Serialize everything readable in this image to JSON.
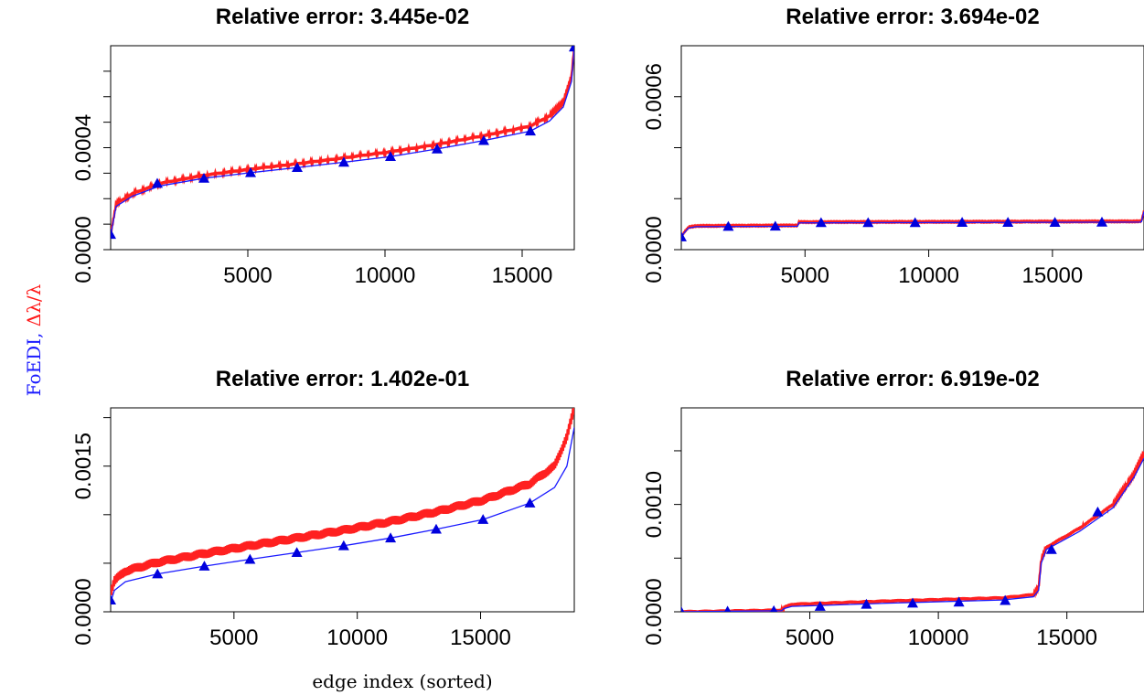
{
  "figure": {
    "ylabel_parts": [
      {
        "text": "FoEDI, ",
        "color": "#1a1aff"
      },
      {
        "text": "Δλ/λ",
        "color": "#ff1a1a"
      }
    ],
    "xlabel": "edge index (sorted)",
    "colors": {
      "foedi": "#1a1aff",
      "delta": "#ff2020",
      "triangle": "#0000dd"
    }
  },
  "chart_data": [
    {
      "type": "line",
      "title": "Relative error:  3.445e-02",
      "xlim": [
        0,
        16900
      ],
      "ylim": [
        0,
        0.0008
      ],
      "xticks": [
        5000,
        10000,
        15000
      ],
      "xticklabels": [
        "5000",
        "10000",
        "15000"
      ],
      "yticks": [
        0,
        0.0004
      ],
      "yticklabels": [
        "0.0000",
        "0.0004"
      ],
      "yminor": [
        0.0001,
        0.0002,
        0.0003,
        0.0005,
        0.0006,
        0.0007
      ],
      "noise": 6e-06,
      "series": [
        {
          "role": "foedi",
          "x": [
            0,
            200,
            800,
            1800,
            3400,
            5100,
            6800,
            8500,
            10200,
            11900,
            13600,
            15300,
            16000,
            16500,
            16800,
            16900
          ],
          "y": [
            5.5e-05,
            0.00017,
            0.00021,
            0.00025,
            0.00028,
            0.000302,
            0.000322,
            0.000343,
            0.000365,
            0.000395,
            0.000428,
            0.000465,
            0.000505,
            0.00056,
            0.00066,
            0.000795
          ]
        },
        {
          "role": "delta",
          "x": [
            0,
            200,
            800,
            1800,
            3400,
            5100,
            6800,
            8500,
            10200,
            11900,
            13600,
            15300,
            16000,
            16500,
            16800,
            16900
          ],
          "y": [
            6e-05,
            0.00018,
            0.00022,
            0.00026,
            0.000292,
            0.000316,
            0.000337,
            0.00036,
            0.000384,
            0.000413,
            0.000447,
            0.000485,
            0.000525,
            0.00058,
            0.00068,
            0.0008
          ]
        },
        {
          "role": "markers",
          "x": [
            0,
            1700,
            3400,
            5100,
            6800,
            8500,
            10200,
            11900,
            13600,
            15300,
            16900
          ],
          "y": [
            6e-05,
            0.00026,
            0.00028,
            0.000302,
            0.000322,
            0.000343,
            0.000365,
            0.000395,
            0.000428,
            0.000465,
            0.000795
          ]
        }
      ]
    },
    {
      "type": "line",
      "title": "Relative error:  3.694e-02",
      "xlim": [
        0,
        18700
      ],
      "ylim": [
        0,
        0.0008
      ],
      "xticks": [
        5000,
        10000,
        15000
      ],
      "xticklabels": [
        "5000",
        "10000",
        "15000"
      ],
      "yticks": [
        0,
        0.0006
      ],
      "yticklabels": [
        "0.0000",
        "0.0006"
      ],
      "yminor": [
        0.0002,
        0.0004
      ],
      "noise": 2e-06,
      "series": [
        {
          "role": "foedi",
          "x": [
            0,
            150,
            300,
            600,
            4700,
            4750,
            18550,
            18600,
            18700
          ],
          "y": [
            5e-05,
            7e-05,
            8.5e-05,
            9e-05,
            9.2e-05,
            0.000105,
            0.000108,
            0.00011,
            0.00015
          ]
        },
        {
          "role": "delta",
          "x": [
            0,
            150,
            300,
            600,
            4700,
            4750,
            18550,
            18600,
            18700
          ],
          "y": [
            5.2e-05,
            7.2e-05,
            8.8e-05,
            9.3e-05,
            9.5e-05,
            0.000108,
            0.000111,
            0.000113,
            0.000152
          ]
        },
        {
          "role": "markers",
          "x": [
            0,
            1900,
            3800,
            5650,
            7550,
            9450,
            11350,
            13200,
            15100,
            17000
          ],
          "y": [
            5e-05,
            9.1e-05,
            9.2e-05,
            0.000106,
            0.000106,
            0.000106,
            0.000107,
            0.000107,
            0.000107,
            0.000108
          ]
        }
      ]
    },
    {
      "type": "line",
      "title": "Relative error:  1.402e-01",
      "xlim": [
        0,
        18800
      ],
      "ylim": [
        0,
        0.0021
      ],
      "xticks": [
        5000,
        10000,
        15000
      ],
      "xticklabels": [
        "5000",
        "10000",
        "15000"
      ],
      "yticks": [
        0,
        0.0015
      ],
      "yticklabels": [
        "0.0000",
        "0.0015"
      ],
      "yminor": [
        0.0005,
        0.001,
        0.002
      ],
      "noise": 5e-05,
      "series": [
        {
          "role": "foedi",
          "x": [
            0,
            150,
            600,
            1900,
            3800,
            5650,
            7550,
            9450,
            11350,
            13200,
            15100,
            17000,
            18000,
            18500,
            18800
          ],
          "y": [
            0.0001,
            0.00022,
            0.00031,
            0.00039,
            0.00047,
            0.00054,
            0.00061,
            0.00068,
            0.00076,
            0.00085,
            0.00095,
            0.00112,
            0.00128,
            0.0015,
            0.0019
          ]
        },
        {
          "role": "delta",
          "x": [
            0,
            150,
            600,
            1900,
            3800,
            5650,
            7550,
            9450,
            11350,
            13200,
            15100,
            17000,
            18000,
            18500,
            18800
          ],
          "y": [
            0.0002,
            0.00032,
            0.00042,
            0.00051,
            0.0006,
            0.00068,
            0.00076,
            0.00084,
            0.00093,
            0.00103,
            0.00115,
            0.00132,
            0.0015,
            0.0018,
            0.0021
          ]
        },
        {
          "role": "markers",
          "x": [
            0,
            1900,
            3800,
            5650,
            7550,
            9450,
            11350,
            13200,
            15100,
            17000
          ],
          "y": [
            0.00012,
            0.00039,
            0.00047,
            0.00054,
            0.00061,
            0.00068,
            0.00076,
            0.00085,
            0.00095,
            0.00112
          ]
        }
      ]
    },
    {
      "type": "line",
      "title": "Relative error:  6.919e-02",
      "xlim": [
        0,
        18000
      ],
      "ylim": [
        0,
        0.0019
      ],
      "xticks": [
        5000,
        10000,
        15000
      ],
      "xticklabels": [
        "5000",
        "10000",
        "15000"
      ],
      "yticks": [
        0,
        0.001
      ],
      "yticklabels": [
        "0.0000",
        "0.0010"
      ],
      "yminor": [
        0.0005,
        0.0015
      ],
      "noise": 1.5e-05,
      "series": [
        {
          "role": "foedi",
          "x": [
            0,
            3900,
            4000,
            4300,
            8000,
            12500,
            13700,
            13900,
            14000,
            14200,
            15500,
            16800,
            17600,
            18000
          ],
          "y": [
            0.0,
            1e-05,
            3e-05,
            5e-05,
            8e-05,
            0.00011,
            0.00014,
            0.0002,
            0.00045,
            0.00058,
            0.00075,
            0.00097,
            0.00125,
            0.00143
          ]
        },
        {
          "role": "delta",
          "x": [
            0,
            3900,
            4000,
            4300,
            8000,
            12500,
            13700,
            13900,
            14000,
            14200,
            15500,
            16800,
            17600,
            18000
          ],
          "y": [
            0.0,
            1.5e-05,
            4e-05,
            7e-05,
            0.0001,
            0.00013,
            0.00016,
            0.00023,
            0.00048,
            0.0006,
            0.00078,
            0.001,
            0.00128,
            0.00148
          ]
        },
        {
          "role": "markers",
          "x": [
            0,
            1800,
            3600,
            5400,
            7200,
            9000,
            10800,
            12600,
            14400,
            16200
          ],
          "y": [
            0.0,
            5e-06,
            1e-05,
            5e-05,
            7e-05,
            8e-05,
            9e-05,
            0.000105,
            0.00058,
            0.00093
          ]
        }
      ]
    }
  ]
}
